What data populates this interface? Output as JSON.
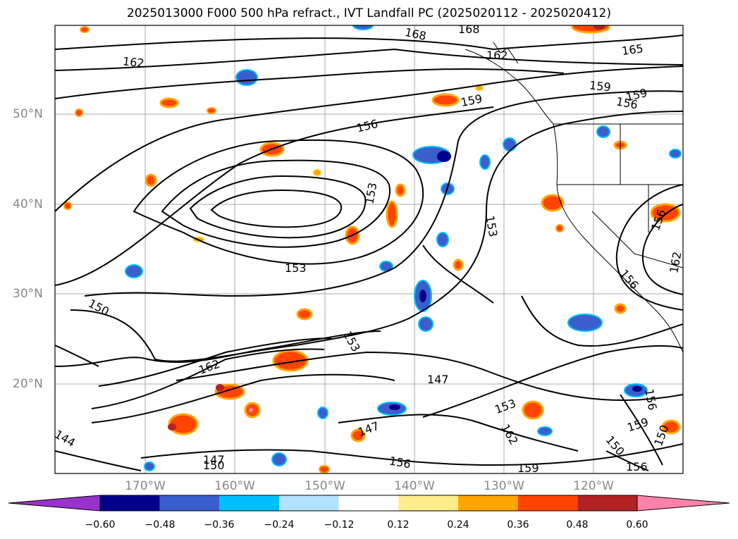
{
  "title": "2025013000 F000 500 hPa refract., IVT Landfall PC (2025020112 - 2025020412)",
  "lat_labels": [
    "50°N",
    "40°N",
    "30°N",
    "20°N"
  ],
  "lon_labels": [
    "170°W",
    "160°W",
    "150°W",
    "140°W",
    "130°W",
    "120°W"
  ],
  "contour_labels": [
    "168",
    "168",
    "162",
    "165",
    "162",
    "159",
    "159",
    "156",
    "159",
    "156",
    "153",
    "153",
    "153",
    "150",
    "153",
    "147",
    "162",
    "147",
    "153",
    "147",
    "150",
    "156",
    "159",
    "162",
    "159",
    "156",
    "156",
    "162",
    "156",
    "156",
    "150",
    "144",
    "150"
  ],
  "colorbar": {
    "ticks": [
      "−0.60",
      "−0.48",
      "−0.36",
      "−0.24",
      "−0.12",
      "0.12",
      "0.24",
      "0.36",
      "0.48",
      "0.60"
    ],
    "colors": [
      "#9932cc",
      "#00008b",
      "#3a5fcd",
      "#00bfff",
      "#b0e2ff",
      "#ffffff",
      "#ffec8b",
      "#ffa500",
      "#ff4500",
      "#b22222",
      "#ff82ab"
    ]
  }
}
